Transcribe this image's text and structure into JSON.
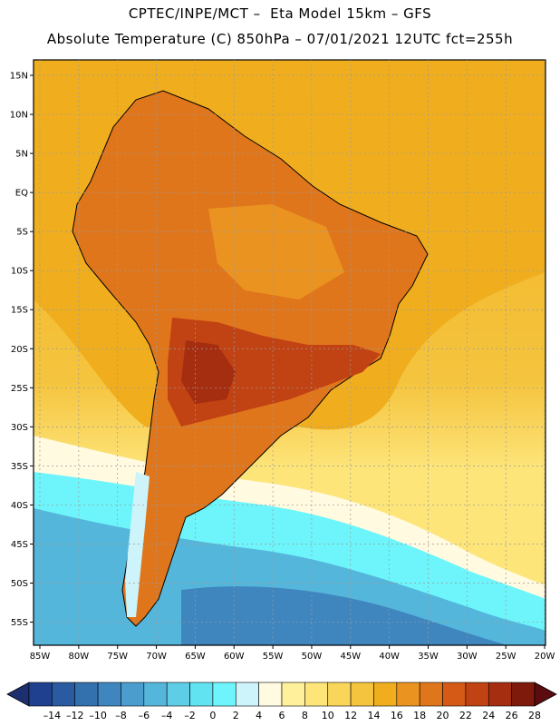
{
  "header": {
    "line1": "CPTEC/INPE/MCT –  Eta Model 15km – GFS",
    "line2": "Absolute Temperature (C) 850hPa – 07/01/2021 12UTC fct=255h"
  },
  "axes": {
    "lat_labels": [
      "15N",
      "10N",
      "5N",
      "EQ",
      "5S",
      "10S",
      "15S",
      "20S",
      "25S",
      "30S",
      "35S",
      "40S",
      "45S",
      "50S",
      "55S"
    ],
    "lon_labels": [
      "85W",
      "80W",
      "75W",
      "70W",
      "65W",
      "60W",
      "55W",
      "50W",
      "45W",
      "40W",
      "35W",
      "30W",
      "25W",
      "20W"
    ]
  },
  "colorbar": {
    "labels": [
      "-14",
      "-12",
      "-10",
      "-8",
      "-6",
      "-4",
      "-2",
      "0",
      "2",
      "4",
      "6",
      "8",
      "10",
      "12",
      "14",
      "16",
      "18",
      "20",
      "22",
      "24",
      "26",
      "28"
    ],
    "colors": [
      "#1f3f8f",
      "#2a5a9f",
      "#3370ae",
      "#3f86bf",
      "#4a9dcc",
      "#55b6db",
      "#5ecde6",
      "#62e3f1",
      "#6ef5fb",
      "#cdf3fb",
      "#fffae0",
      "#fff09c",
      "#fde57a",
      "#f9d65a",
      "#f5c43e",
      "#f0ae1e",
      "#ea9320",
      "#e0761c",
      "#d45a16",
      "#c14212",
      "#a52d10",
      "#7e1a0c"
    ],
    "left_arrow_color": "#1d2f6f",
    "right_arrow_color": "#5a0c10"
  },
  "map": {
    "ocean_colors": {
      "warm": "#f0ae1e",
      "mid": "#f5c43e",
      "light": "#fde57a",
      "cold_1": "#6ef5fb",
      "cold_2": "#55b6db",
      "cold_3": "#3f86bf"
    },
    "land_colors": {
      "hot": "#e0761c",
      "hotter": "#c14212",
      "hottest": "#a52d10",
      "andes_cold": "#cdf3fb"
    },
    "gridline_color": "#9a9a9a",
    "coastline_color": "#000000"
  }
}
